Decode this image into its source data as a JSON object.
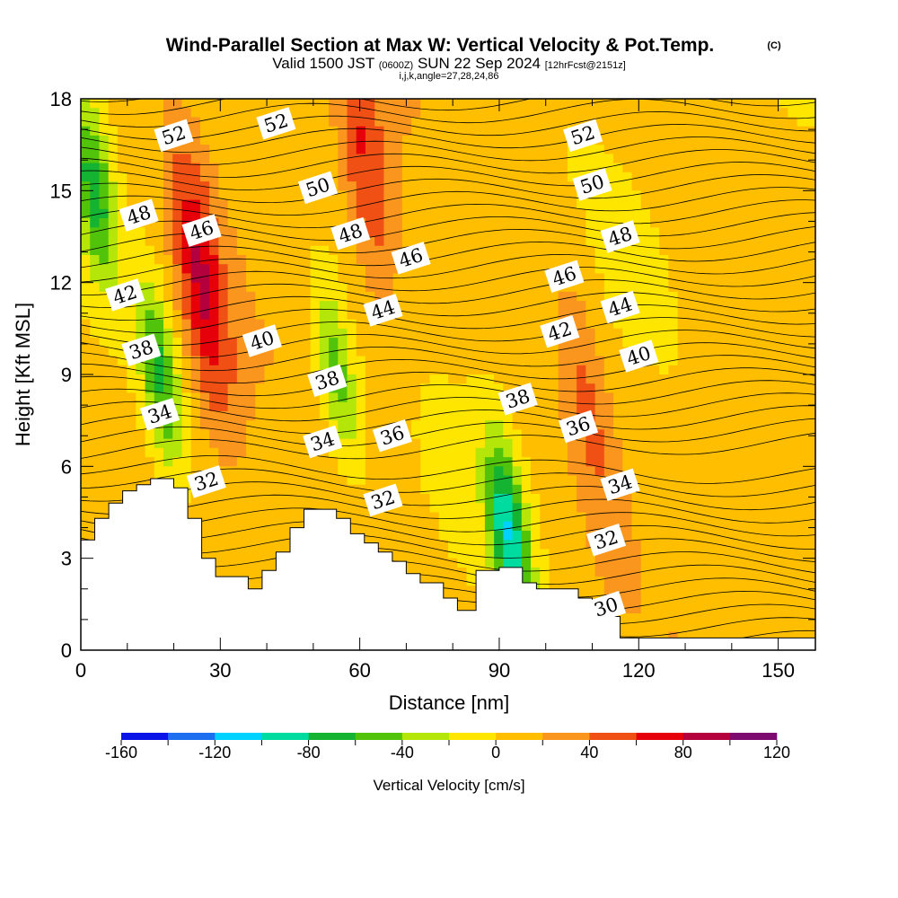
{
  "chart_data": {
    "type": "heatmap",
    "title": "Wind-Parallel Section at Max W: Vertical Velocity & Pot.Temp.",
    "title_mark": "(C)",
    "subtitle_main_a": "Valid 1500 JST ",
    "subtitle_small_a": "(0600Z)",
    "subtitle_main_b": " SUN 22 Sep 2024 ",
    "subtitle_small_b": "[12hrFcst@2151z]",
    "subtitle2": "i,j,k,angle=27,28,24,86",
    "xlabel": "Distance [nm]",
    "ylabel": "Height [Kft MSL]",
    "xlim": [
      0,
      158
    ],
    "ylim": [
      0,
      18
    ],
    "x_ticks": [
      0,
      30,
      60,
      90,
      120,
      150
    ],
    "y_ticks": [
      0,
      3,
      6,
      9,
      12,
      15,
      18
    ],
    "colorbar": {
      "title": "Vertical Velocity [cm/s]",
      "min": -160,
      "max": 120,
      "step": 20,
      "ticks": [
        -160,
        -120,
        -80,
        -40,
        0,
        40,
        80,
        120
      ],
      "colors": [
        "#0a14e6",
        "#1e6ef0",
        "#00d2ff",
        "#00dca0",
        "#14b432",
        "#50c30a",
        "#b4e60a",
        "#ffe600",
        "#ffbe00",
        "#fa961e",
        "#f05014",
        "#e6000a",
        "#b4003c",
        "#7d0a6e"
      ]
    },
    "velocity_features": [
      {
        "type": "updraft",
        "x": 26,
        "y": 12,
        "value": 70
      },
      {
        "type": "updraft",
        "x": 61,
        "y": 16,
        "value": 50
      },
      {
        "type": "updraft",
        "x": 109,
        "y": 8,
        "value": 35
      },
      {
        "type": "downdraft",
        "x": 17,
        "y": 9,
        "value": -70
      },
      {
        "type": "downdraft",
        "x": 3,
        "y": 15,
        "value": -70
      },
      {
        "type": "downdraft",
        "x": 55,
        "y": 9,
        "value": -60
      },
      {
        "type": "downdraft",
        "x": 92,
        "y": 3.8,
        "value": -100
      }
    ],
    "theta_contour_labels": [
      {
        "text": "52",
        "x": 20,
        "y": 16.8
      },
      {
        "text": "52",
        "x": 42,
        "y": 17.2
      },
      {
        "text": "52",
        "x": 108,
        "y": 16.8
      },
      {
        "text": "50",
        "x": 51,
        "y": 15.1
      },
      {
        "text": "50",
        "x": 110,
        "y": 15.2
      },
      {
        "text": "48",
        "x": 12.5,
        "y": 14.2
      },
      {
        "text": "48",
        "x": 58,
        "y": 13.6
      },
      {
        "text": "48",
        "x": 116,
        "y": 13.5
      },
      {
        "text": "46",
        "x": 26,
        "y": 13.7
      },
      {
        "text": "46",
        "x": 71,
        "y": 12.8
      },
      {
        "text": "46",
        "x": 104,
        "y": 12.2
      },
      {
        "text": "44",
        "x": 65,
        "y": 11.1
      },
      {
        "text": "44",
        "x": 116,
        "y": 11.2
      },
      {
        "text": "42",
        "x": 9.5,
        "y": 11.6
      },
      {
        "text": "42",
        "x": 103,
        "y": 10.4
      },
      {
        "text": "40",
        "x": 39,
        "y": 10.1
      },
      {
        "text": "40",
        "x": 120,
        "y": 9.6
      },
      {
        "text": "38",
        "x": 13,
        "y": 9.8
      },
      {
        "text": "38",
        "x": 53,
        "y": 8.8
      },
      {
        "text": "38",
        "x": 94,
        "y": 8.2
      },
      {
        "text": "36",
        "x": 67,
        "y": 7.0
      },
      {
        "text": "36",
        "x": 107,
        "y": 7.3
      },
      {
        "text": "34",
        "x": 17,
        "y": 7.7
      },
      {
        "text": "34",
        "x": 52,
        "y": 6.8
      },
      {
        "text": "34",
        "x": 116,
        "y": 5.4
      },
      {
        "text": "32",
        "x": 27,
        "y": 5.5
      },
      {
        "text": "32",
        "x": 65,
        "y": 4.9
      },
      {
        "text": "32",
        "x": 113,
        "y": 3.6
      },
      {
        "text": "30",
        "x": 113,
        "y": 1.4
      }
    ],
    "terrain_nm_kft": [
      [
        0,
        3.6
      ],
      [
        3,
        4.3
      ],
      [
        6,
        4.8
      ],
      [
        9,
        5.2
      ],
      [
        12,
        5.4
      ],
      [
        15,
        5.6
      ],
      [
        20,
        5.3
      ],
      [
        23,
        4.3
      ],
      [
        26,
        3.0
      ],
      [
        29,
        2.4
      ],
      [
        36,
        2.0
      ],
      [
        39,
        2.6
      ],
      [
        42,
        3.2
      ],
      [
        45,
        4.0
      ],
      [
        48,
        4.6
      ],
      [
        55,
        4.3
      ],
      [
        58,
        3.8
      ],
      [
        61,
        3.5
      ],
      [
        64,
        3.2
      ],
      [
        67,
        2.9
      ],
      [
        70,
        2.5
      ],
      [
        73,
        2.2
      ],
      [
        78,
        1.7
      ],
      [
        81,
        1.3
      ],
      [
        85,
        2.6
      ],
      [
        90,
        2.7
      ],
      [
        95,
        2.2
      ],
      [
        98,
        2.0
      ],
      [
        107,
        1.7
      ],
      [
        110,
        1.1
      ],
      [
        116,
        0.4
      ],
      [
        158,
        0.4
      ]
    ]
  }
}
